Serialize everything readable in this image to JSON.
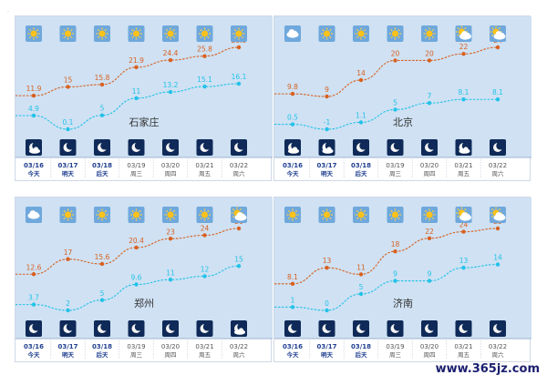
{
  "colors": {
    "panel_bg": "#cfe1f3",
    "high_line": "#d9601e",
    "low_line": "#22c2e8",
    "night_icon_bg": "#0f2a58",
    "date_text": "#1f3f8f",
    "label_text": "#555555"
  },
  "days": [
    {
      "date": "03/16",
      "label": "今天"
    },
    {
      "date": "03/17",
      "label": "明天"
    },
    {
      "date": "03/18",
      "label": "后天"
    },
    {
      "date": "03/19",
      "label": "周三"
    },
    {
      "date": "03/20",
      "label": "周四"
    },
    {
      "date": "03/21",
      "label": "周五"
    },
    {
      "date": "03/22",
      "label": "周六"
    }
  ],
  "watermark": "www.365jz.com",
  "chart_data": [
    {
      "type": "line",
      "city": "石家庄",
      "x": [
        "03/16",
        "03/17",
        "03/18",
        "03/19",
        "03/20",
        "03/21",
        "03/22"
      ],
      "series": [
        {
          "values": [
            11.9,
            15,
            15.8,
            21.9,
            24.4,
            25.8,
            28.9
          ]
        },
        {
          "values": [
            4.9,
            0.1,
            5,
            11,
            13.2,
            15.1,
            16.1
          ]
        }
      ],
      "day_icons": [
        "sun-icon",
        "sun-icon",
        "sun-icon",
        "sun-icon",
        "sun-icon",
        "sun-icon",
        "sun-icon"
      ],
      "night_icons": [
        "cloudy-night-icon",
        "moon-icon",
        "moon-icon",
        "moon-icon",
        "moon-icon",
        "moon-icon",
        "moon-icon"
      ]
    },
    {
      "type": "line",
      "city": "北京",
      "x": [
        "03/16",
        "03/17",
        "03/18",
        "03/19",
        "03/20",
        "03/21",
        "03/22"
      ],
      "series": [
        {
          "values": [
            9.8,
            9,
            14,
            20,
            20,
            22,
            24
          ]
        },
        {
          "values": [
            0.5,
            -1,
            1.1,
            5,
            7,
            8.1,
            8.1
          ]
        }
      ],
      "day_icons": [
        "cloud-icon",
        "sun-icon",
        "sun-icon",
        "sun-icon",
        "sun-icon",
        "partly-cloudy-icon",
        "partly-cloudy-icon"
      ],
      "night_icons": [
        "cloudy-night-icon",
        "cloudy-night-icon",
        "moon-icon",
        "moon-icon",
        "moon-icon",
        "cloudy-night-icon",
        "moon-icon"
      ]
    },
    {
      "type": "line",
      "city": "郑州",
      "x": [
        "03/16",
        "03/17",
        "03/18",
        "03/19",
        "03/20",
        "03/21",
        "03/22"
      ],
      "series": [
        {
          "values": [
            12.6,
            17,
            15.6,
            20.4,
            23,
            24,
            26
          ]
        },
        {
          "values": [
            3.7,
            2,
            5,
            9.6,
            11,
            12,
            15
          ]
        }
      ],
      "day_icons": [
        "cloud-icon",
        "sun-icon",
        "sun-icon",
        "sun-icon",
        "sun-icon",
        "sun-icon",
        "partly-cloudy-icon"
      ],
      "night_icons": [
        "moon-icon",
        "moon-icon",
        "moon-icon",
        "moon-icon",
        "moon-icon",
        "moon-icon",
        "cloudy-night-icon"
      ]
    },
    {
      "type": "line",
      "city": "济南",
      "x": [
        "03/16",
        "03/17",
        "03/18",
        "03/19",
        "03/20",
        "03/21",
        "03/22"
      ],
      "series": [
        {
          "values": [
            8.1,
            13,
            11,
            18,
            22,
            24,
            25
          ]
        },
        {
          "values": [
            1,
            0,
            5,
            9,
            9,
            13,
            14
          ]
        }
      ],
      "day_icons": [
        "sun-icon",
        "sun-icon",
        "sun-icon",
        "sun-icon",
        "sun-icon",
        "partly-cloudy-icon",
        "partly-cloudy-icon"
      ],
      "night_icons": [
        "moon-icon",
        "moon-icon",
        "moon-icon",
        "moon-icon",
        "moon-icon",
        "moon-icon",
        "moon-icon"
      ]
    }
  ]
}
